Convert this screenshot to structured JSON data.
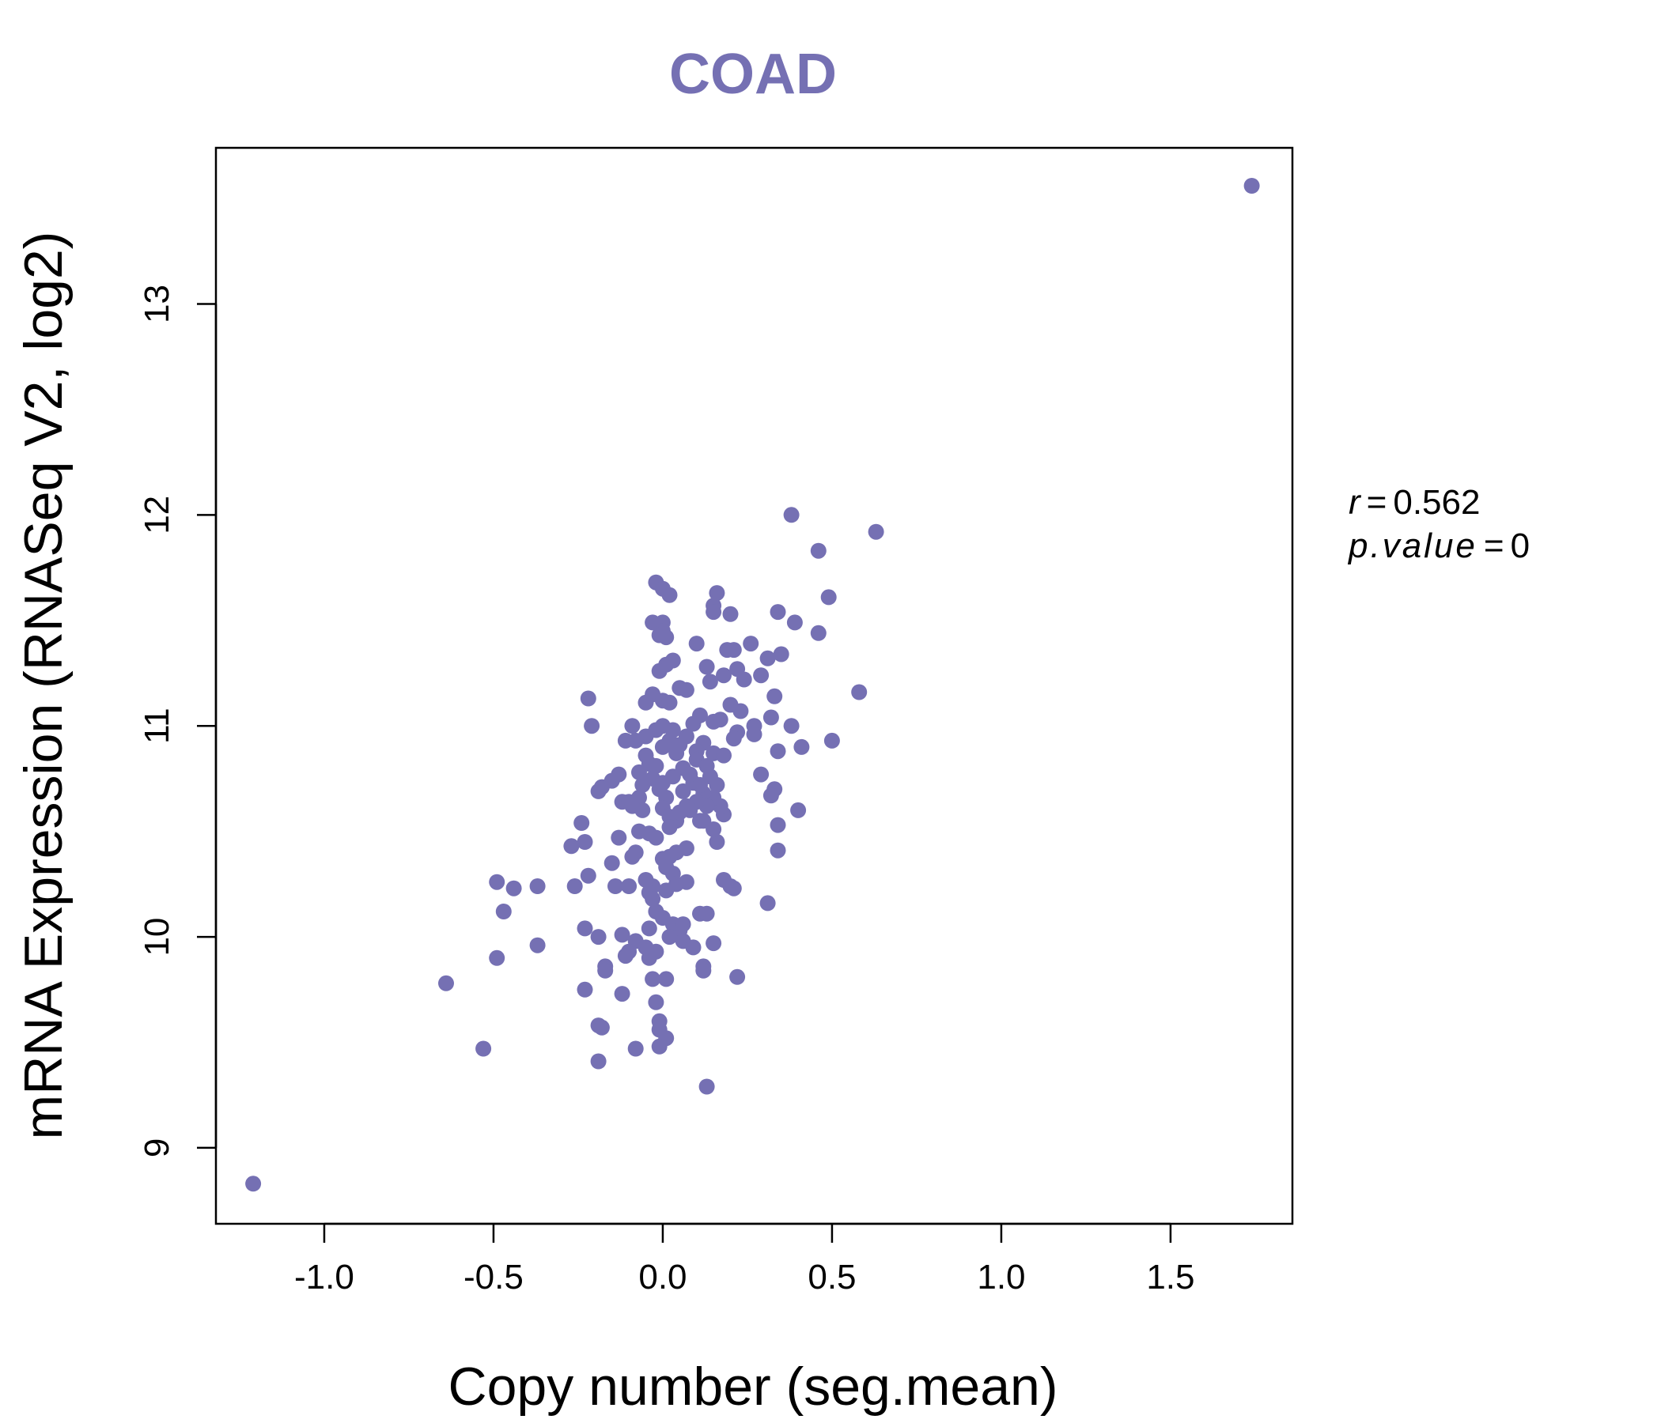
{
  "chart_data": {
    "type": "scatter",
    "title": "COAD",
    "xlabel": "Copy number (seg.mean)",
    "ylabel": "mRNA Expression (RNASeq V2, log2)",
    "xlim": [
      -1.32,
      1.86
    ],
    "ylim": [
      8.64,
      13.74
    ],
    "xticks": [
      -1.0,
      -0.5,
      0.0,
      0.5,
      1.0,
      1.5
    ],
    "xtick_labels": [
      "-1.0",
      "-0.5",
      "0.0",
      "0.5",
      "1.0",
      "1.5"
    ],
    "yticks": [
      9,
      10,
      11,
      12,
      13
    ],
    "ytick_labels": [
      "9",
      "10",
      "11",
      "12",
      "13"
    ],
    "point_color": "#7570b3",
    "stats": {
      "r_label": "r",
      "r_value": "0.562",
      "p_label": "p.value",
      "p_value": "0",
      "equals": "="
    },
    "points": [
      [
        -1.21,
        8.83
      ],
      [
        1.74,
        13.56
      ],
      [
        0.38,
        12.0
      ],
      [
        0.63,
        11.92
      ],
      [
        0.46,
        11.83
      ],
      [
        0.49,
        11.61
      ],
      [
        0.34,
        11.54
      ],
      [
        0.39,
        11.49
      ],
      [
        0.46,
        11.44
      ],
      [
        0.35,
        11.34
      ],
      [
        0.31,
        11.32
      ],
      [
        0.58,
        11.16
      ],
      [
        0.33,
        11.14
      ],
      [
        0.29,
        11.24
      ],
      [
        0.26,
        11.39
      ],
      [
        0.21,
        11.36
      ],
      [
        0.19,
        11.36
      ],
      [
        0.2,
        11.53
      ],
      [
        0.16,
        11.63
      ],
      [
        0.15,
        11.57
      ],
      [
        0.15,
        11.54
      ],
      [
        0.1,
        11.39
      ],
      [
        0.13,
        11.28
      ],
      [
        0.18,
        11.24
      ],
      [
        0.22,
        11.27
      ],
      [
        0.24,
        11.22
      ],
      [
        0.14,
        11.21
      ],
      [
        -0.02,
        11.68
      ],
      [
        0.0,
        11.65
      ],
      [
        0.02,
        11.62
      ],
      [
        -0.03,
        11.49
      ],
      [
        0.0,
        11.49
      ],
      [
        0.0,
        11.45
      ],
      [
        -0.01,
        11.43
      ],
      [
        0.01,
        11.42
      ],
      [
        0.03,
        11.31
      ],
      [
        0.01,
        11.29
      ],
      [
        -0.01,
        11.26
      ],
      [
        0.05,
        11.18
      ],
      [
        0.07,
        11.17
      ],
      [
        -0.03,
        11.15
      ],
      [
        0.0,
        11.12
      ],
      [
        0.02,
        11.11
      ],
      [
        -0.05,
        11.11
      ],
      [
        0.2,
        11.1
      ],
      [
        0.23,
        11.07
      ],
      [
        0.11,
        11.05
      ],
      [
        0.15,
        11.02
      ],
      [
        0.17,
        11.03
      ],
      [
        0.09,
        11.01
      ],
      [
        0.27,
        11.0
      ],
      [
        0.32,
        11.04
      ],
      [
        0.38,
        11.0
      ],
      [
        0.27,
        10.96
      ],
      [
        0.22,
        10.97
      ],
      [
        0.21,
        10.94
      ],
      [
        0.12,
        10.92
      ],
      [
        0.1,
        10.88
      ],
      [
        0.15,
        10.87
      ],
      [
        0.18,
        10.86
      ],
      [
        0.29,
        10.77
      ],
      [
        0.33,
        10.7
      ],
      [
        0.32,
        10.67
      ],
      [
        0.34,
        10.88
      ],
      [
        0.41,
        10.9
      ],
      [
        0.5,
        10.93
      ],
      [
        0.4,
        10.6
      ],
      [
        0.34,
        10.53
      ],
      [
        0.34,
        10.41
      ],
      [
        0.31,
        10.16
      ],
      [
        0.21,
        10.23
      ],
      [
        0.18,
        10.27
      ],
      [
        0.16,
        10.45
      ],
      [
        0.18,
        10.58
      ],
      [
        0.17,
        10.62
      ],
      [
        0.15,
        10.66
      ],
      [
        0.12,
        10.68
      ],
      [
        0.11,
        10.72
      ],
      [
        0.14,
        10.76
      ],
      [
        0.09,
        10.73
      ],
      [
        0.06,
        10.69
      ],
      [
        0.08,
        10.6
      ],
      [
        0.11,
        10.55
      ],
      [
        0.12,
        10.55
      ],
      [
        0.15,
        10.51
      ],
      [
        0.13,
        10.62
      ],
      [
        0.1,
        10.64
      ],
      [
        0.07,
        10.42
      ],
      [
        0.04,
        10.4
      ],
      [
        0.02,
        10.38
      ],
      [
        0.0,
        10.37
      ],
      [
        0.01,
        10.33
      ],
      [
        0.03,
        10.3
      ],
      [
        0.07,
        10.26
      ],
      [
        0.04,
        10.25
      ],
      [
        0.01,
        10.22
      ],
      [
        -0.03,
        10.24
      ],
      [
        -0.05,
        10.27
      ],
      [
        -0.04,
        10.21
      ],
      [
        -0.03,
        10.18
      ],
      [
        -0.02,
        10.12
      ],
      [
        0.0,
        10.09
      ],
      [
        0.03,
        10.06
      ],
      [
        0.05,
        10.03
      ],
      [
        0.06,
        10.06
      ],
      [
        0.11,
        10.11
      ],
      [
        0.13,
        10.11
      ],
      [
        0.02,
        10.0
      ],
      [
        0.06,
        9.98
      ],
      [
        0.09,
        9.95
      ],
      [
        0.15,
        9.97
      ],
      [
        0.12,
        9.86
      ],
      [
        0.12,
        9.84
      ],
      [
        0.22,
        9.81
      ],
      [
        0.01,
        9.8
      ],
      [
        -0.03,
        9.8
      ],
      [
        -0.04,
        9.9
      ],
      [
        -0.02,
        9.93
      ],
      [
        -0.05,
        9.95
      ],
      [
        -0.08,
        9.98
      ],
      [
        -0.1,
        9.93
      ],
      [
        -0.11,
        9.91
      ],
      [
        -0.12,
        10.01
      ],
      [
        -0.19,
        10.0
      ],
      [
        -0.23,
        10.04
      ],
      [
        -0.17,
        9.86
      ],
      [
        -0.17,
        9.84
      ],
      [
        -0.23,
        9.75
      ],
      [
        -0.12,
        9.73
      ],
      [
        -0.02,
        9.69
      ],
      [
        -0.01,
        9.6
      ],
      [
        -0.01,
        9.56
      ],
      [
        0.01,
        9.52
      ],
      [
        -0.01,
        9.48
      ],
      [
        -0.08,
        9.47
      ],
      [
        -0.19,
        9.58
      ],
      [
        -0.18,
        9.57
      ],
      [
        -0.19,
        9.41
      ],
      [
        0.13,
        9.29
      ],
      [
        -0.53,
        9.47
      ],
      [
        -0.64,
        9.78
      ],
      [
        -0.49,
        9.9
      ],
      [
        -0.37,
        9.96
      ],
      [
        -0.47,
        10.12
      ],
      [
        -0.44,
        10.23
      ],
      [
        -0.49,
        10.26
      ],
      [
        -0.37,
        10.24
      ],
      [
        -0.26,
        10.24
      ],
      [
        -0.22,
        10.29
      ],
      [
        -0.14,
        10.24
      ],
      [
        -0.1,
        10.24
      ],
      [
        -0.15,
        10.35
      ],
      [
        -0.09,
        10.38
      ],
      [
        -0.08,
        10.4
      ],
      [
        -0.13,
        10.47
      ],
      [
        -0.07,
        10.5
      ],
      [
        -0.04,
        10.49
      ],
      [
        -0.02,
        10.47
      ],
      [
        -0.24,
        10.54
      ],
      [
        -0.23,
        10.45
      ],
      [
        -0.27,
        10.43
      ],
      [
        -0.19,
        10.69
      ],
      [
        -0.18,
        10.71
      ],
      [
        -0.15,
        10.74
      ],
      [
        -0.13,
        10.77
      ],
      [
        -0.12,
        10.64
      ],
      [
        -0.1,
        10.64
      ],
      [
        -0.07,
        10.66
      ],
      [
        -0.06,
        10.72
      ],
      [
        -0.07,
        10.78
      ],
      [
        -0.04,
        10.82
      ],
      [
        -0.02,
        10.81
      ],
      [
        -0.03,
        10.75
      ],
      [
        -0.01,
        10.7
      ],
      [
        0.01,
        10.66
      ],
      [
        0.0,
        10.61
      ],
      [
        0.02,
        10.57
      ],
      [
        0.04,
        10.55
      ],
      [
        0.02,
        10.52
      ],
      [
        0.05,
        10.59
      ],
      [
        0.07,
        10.62
      ],
      [
        -0.06,
        10.6
      ],
      [
        -0.09,
        10.62
      ],
      [
        0.0,
        10.9
      ],
      [
        0.02,
        10.93
      ],
      [
        0.04,
        10.87
      ],
      [
        0.05,
        10.91
      ],
      [
        0.07,
        10.95
      ],
      [
        0.03,
        10.98
      ],
      [
        0.0,
        11.0
      ],
      [
        -0.02,
        10.98
      ],
      [
        -0.05,
        10.95
      ],
      [
        -0.08,
        10.93
      ],
      [
        -0.11,
        10.93
      ],
      [
        -0.09,
        11.0
      ],
      [
        -0.21,
        11.0
      ],
      [
        -0.22,
        11.13
      ],
      [
        -0.05,
        10.86
      ],
      [
        0.06,
        10.8
      ],
      [
        0.08,
        10.77
      ],
      [
        0.0,
        10.73
      ],
      [
        0.03,
        10.76
      ],
      [
        0.1,
        10.84
      ],
      [
        0.13,
        10.81
      ],
      [
        0.16,
        10.72
      ],
      [
        0.2,
        10.24
      ],
      [
        -0.04,
        10.04
      ]
    ]
  }
}
